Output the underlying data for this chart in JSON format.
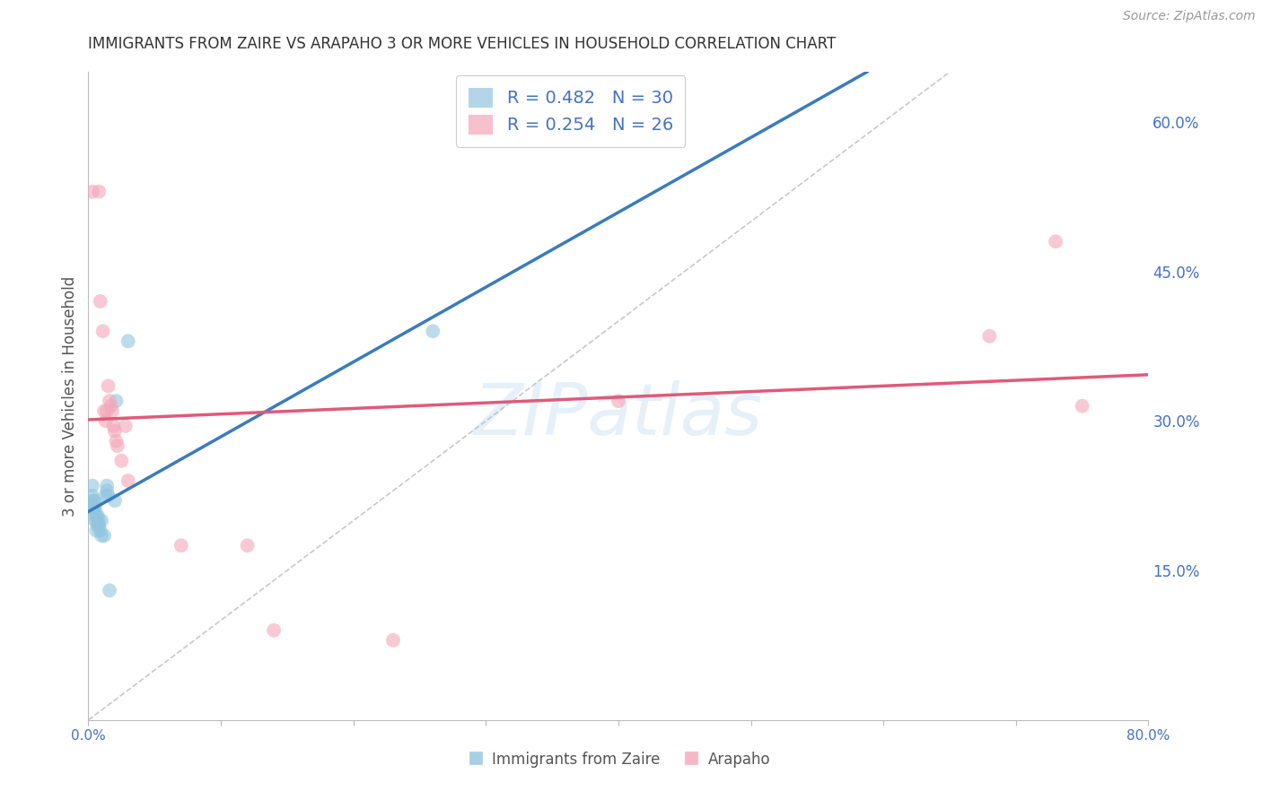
{
  "title": "IMMIGRANTS FROM ZAIRE VS ARAPAHO 3 OR MORE VEHICLES IN HOUSEHOLD CORRELATION CHART",
  "source_text": "Source: ZipAtlas.com",
  "ylabel": "3 or more Vehicles in Household",
  "xlim": [
    0.0,
    0.8
  ],
  "ylim": [
    0.0,
    0.65
  ],
  "xticks": [
    0.0,
    0.1,
    0.2,
    0.3,
    0.4,
    0.5,
    0.6,
    0.7,
    0.8
  ],
  "yticks_right": [
    0.15,
    0.3,
    0.45,
    0.6
  ],
  "ytick_right_labels": [
    "15.0%",
    "30.0%",
    "45.0%",
    "60.0%"
  ],
  "blue_color": "#92c5de",
  "pink_color": "#f4a6b8",
  "blue_line_color": "#3a7bbf",
  "pink_line_color": "#e05a7a",
  "legend_text_color": "#4472c4",
  "blue_scatter": [
    [
      0.002,
      0.215
    ],
    [
      0.003,
      0.215
    ],
    [
      0.003,
      0.225
    ],
    [
      0.003,
      0.235
    ],
    [
      0.004,
      0.21
    ],
    [
      0.004,
      0.22
    ],
    [
      0.005,
      0.2
    ],
    [
      0.005,
      0.21
    ],
    [
      0.005,
      0.215
    ],
    [
      0.005,
      0.22
    ],
    [
      0.006,
      0.19
    ],
    [
      0.006,
      0.2
    ],
    [
      0.006,
      0.205
    ],
    [
      0.007,
      0.195
    ],
    [
      0.007,
      0.205
    ],
    [
      0.008,
      0.195
    ],
    [
      0.008,
      0.2
    ],
    [
      0.009,
      0.19
    ],
    [
      0.01,
      0.185
    ],
    [
      0.01,
      0.2
    ],
    [
      0.012,
      0.185
    ],
    [
      0.013,
      0.225
    ],
    [
      0.014,
      0.23
    ],
    [
      0.014,
      0.235
    ],
    [
      0.015,
      0.225
    ],
    [
      0.016,
      0.13
    ],
    [
      0.02,
      0.22
    ],
    [
      0.021,
      0.32
    ],
    [
      0.03,
      0.38
    ],
    [
      0.26,
      0.39
    ]
  ],
  "pink_scatter": [
    [
      0.003,
      0.53
    ],
    [
      0.008,
      0.53
    ],
    [
      0.009,
      0.42
    ],
    [
      0.011,
      0.39
    ],
    [
      0.012,
      0.31
    ],
    [
      0.013,
      0.3
    ],
    [
      0.014,
      0.31
    ],
    [
      0.015,
      0.335
    ],
    [
      0.016,
      0.32
    ],
    [
      0.017,
      0.315
    ],
    [
      0.018,
      0.31
    ],
    [
      0.019,
      0.295
    ],
    [
      0.02,
      0.29
    ],
    [
      0.021,
      0.28
    ],
    [
      0.022,
      0.275
    ],
    [
      0.025,
      0.26
    ],
    [
      0.028,
      0.295
    ],
    [
      0.03,
      0.24
    ],
    [
      0.07,
      0.175
    ],
    [
      0.12,
      0.175
    ],
    [
      0.14,
      0.09
    ],
    [
      0.23,
      0.08
    ],
    [
      0.4,
      0.32
    ],
    [
      0.68,
      0.385
    ],
    [
      0.73,
      0.48
    ],
    [
      0.75,
      0.315
    ]
  ],
  "watermark": "ZIPatlas",
  "background_color": "#ffffff",
  "grid_color": "#cccccc",
  "title_color": "#333333",
  "axis_label_color": "#555555",
  "right_axis_color": "#4472c4"
}
